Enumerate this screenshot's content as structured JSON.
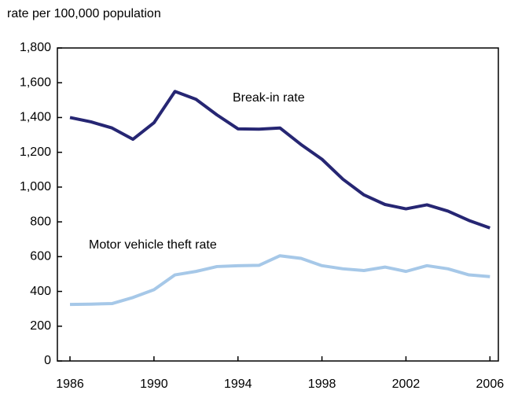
{
  "chart_data": {
    "type": "line",
    "y_axis_label": "rate per 100,000 population",
    "annotations": [
      "Break-in rate",
      "Motor vehicle theft rate"
    ],
    "x": [
      1986,
      1987,
      1988,
      1989,
      1990,
      1991,
      1992,
      1993,
      1994,
      1995,
      1996,
      1997,
      1998,
      1999,
      2000,
      2001,
      2002,
      2003,
      2004,
      2005,
      2006
    ],
    "series": [
      {
        "name": "Break-in rate",
        "color": "#262673",
        "values": [
          1400,
          1375,
          1340,
          1275,
          1370,
          1550,
          1505,
          1415,
          1335,
          1333,
          1340,
          1245,
          1160,
          1045,
          955,
          900,
          875,
          898,
          862,
          808,
          765
        ]
      },
      {
        "name": "Motor vehicle theft rate",
        "color": "#a6c8e8",
        "values": [
          325,
          327,
          330,
          365,
          410,
          495,
          515,
          543,
          548,
          550,
          605,
          590,
          548,
          530,
          520,
          540,
          515,
          548,
          530,
          495,
          485
        ]
      }
    ],
    "xlim": [
      1985.4,
      2006.4
    ],
    "xticks": [
      1986,
      1990,
      1994,
      1998,
      2002,
      2006
    ],
    "ylim": [
      0,
      1800
    ],
    "yticks": [
      0,
      200,
      400,
      600,
      800,
      {
        "value": 1000,
        "label": "1,000"
      },
      {
        "value": 1200,
        "label": "1,200"
      },
      {
        "value": 1400,
        "label": "1,400"
      },
      {
        "value": 1600,
        "label": "1,600"
      },
      {
        "value": 1800,
        "label": "1,800"
      }
    ],
    "grid": false
  }
}
